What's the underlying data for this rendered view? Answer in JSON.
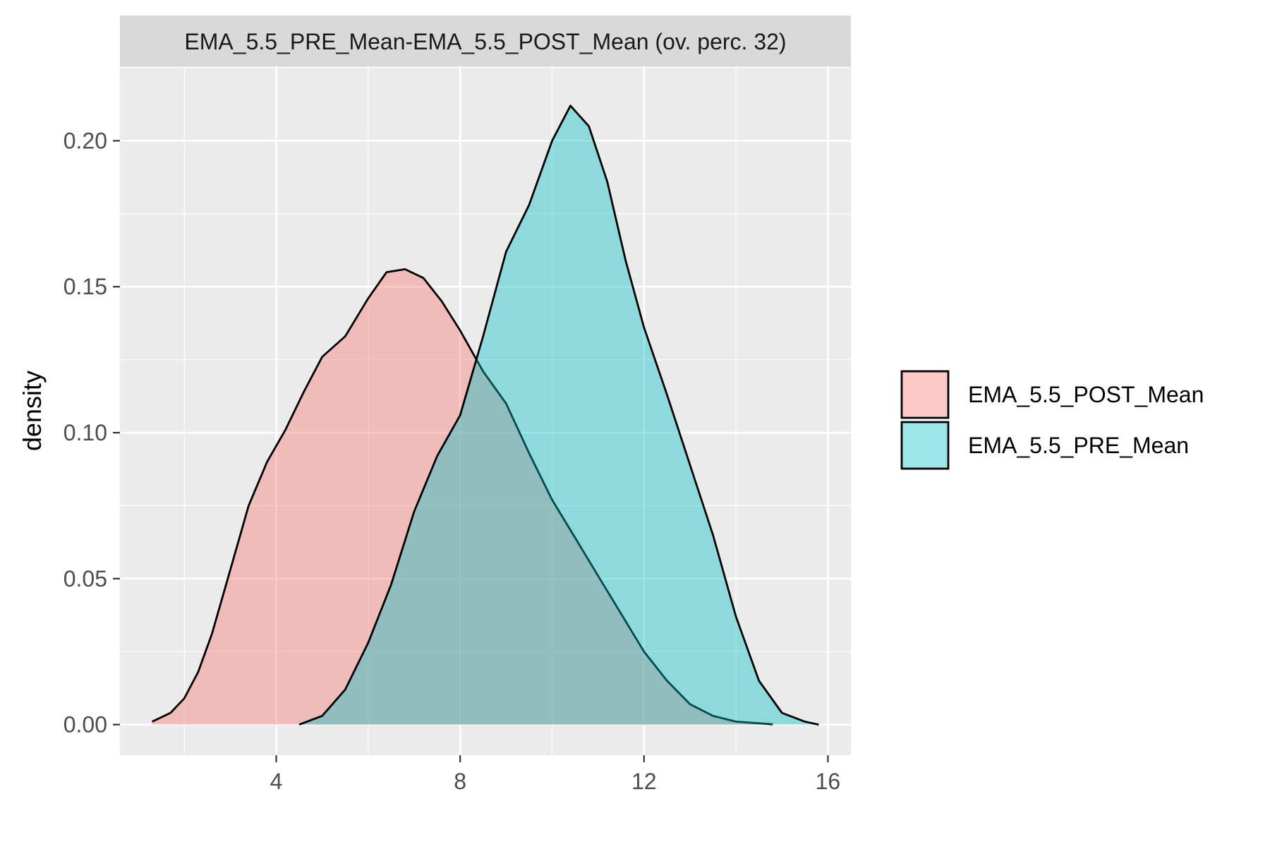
{
  "chart_data": {
    "type": "area",
    "panel_title": "EMA_5.5_PRE_Mean-EMA_5.5_POST_Mean (ov. perc. 32)",
    "xlabel": "",
    "ylabel": "density",
    "xlim": [
      0.6,
      16.5
    ],
    "ylim": [
      -0.0105,
      0.2255
    ],
    "x_ticks": [
      4,
      8,
      12,
      16
    ],
    "x_tick_labels": [
      "4",
      "8",
      "12",
      "16"
    ],
    "y_ticks": [
      0.0,
      0.05,
      0.1,
      0.15,
      0.2
    ],
    "y_tick_labels": [
      "0.00",
      "0.05",
      "0.10",
      "0.15",
      "0.20"
    ],
    "grid": true,
    "legend_position": "right",
    "series": [
      {
        "name": "EMA_5.5_POST_Mean",
        "color": "#F8766D",
        "points": [
          [
            1.3,
            0.001
          ],
          [
            1.7,
            0.004
          ],
          [
            2.0,
            0.009
          ],
          [
            2.3,
            0.018
          ],
          [
            2.6,
            0.031
          ],
          [
            3.0,
            0.053
          ],
          [
            3.4,
            0.075
          ],
          [
            3.8,
            0.09
          ],
          [
            4.2,
            0.101
          ],
          [
            4.6,
            0.114
          ],
          [
            5.0,
            0.126
          ],
          [
            5.5,
            0.133
          ],
          [
            6.0,
            0.146
          ],
          [
            6.4,
            0.155
          ],
          [
            6.8,
            0.156
          ],
          [
            7.2,
            0.153
          ],
          [
            7.6,
            0.145
          ],
          [
            8.0,
            0.135
          ],
          [
            8.5,
            0.121
          ],
          [
            9.0,
            0.11
          ],
          [
            9.5,
            0.093
          ],
          [
            10.0,
            0.077
          ],
          [
            10.5,
            0.064
          ],
          [
            11.0,
            0.051
          ],
          [
            11.5,
            0.038
          ],
          [
            12.0,
            0.025
          ],
          [
            12.5,
            0.015
          ],
          [
            13.0,
            0.007
          ],
          [
            13.5,
            0.003
          ],
          [
            14.0,
            0.001
          ],
          [
            14.8,
            0.0001
          ]
        ]
      },
      {
        "name": "EMA_5.5_PRE_Mean",
        "color": "#00BFC4",
        "points": [
          [
            4.5,
            0.0
          ],
          [
            5.0,
            0.003
          ],
          [
            5.5,
            0.012
          ],
          [
            6.0,
            0.028
          ],
          [
            6.5,
            0.048
          ],
          [
            7.0,
            0.073
          ],
          [
            7.5,
            0.092
          ],
          [
            8.0,
            0.106
          ],
          [
            8.5,
            0.133
          ],
          [
            9.0,
            0.162
          ],
          [
            9.5,
            0.178
          ],
          [
            10.0,
            0.2
          ],
          [
            10.4,
            0.212
          ],
          [
            10.8,
            0.205
          ],
          [
            11.2,
            0.186
          ],
          [
            11.6,
            0.159
          ],
          [
            12.0,
            0.136
          ],
          [
            12.5,
            0.113
          ],
          [
            13.0,
            0.089
          ],
          [
            13.5,
            0.065
          ],
          [
            14.0,
            0.037
          ],
          [
            14.5,
            0.015
          ],
          [
            15.0,
            0.004
          ],
          [
            15.5,
            0.001
          ],
          [
            15.8,
            0.0
          ]
        ]
      }
    ]
  }
}
